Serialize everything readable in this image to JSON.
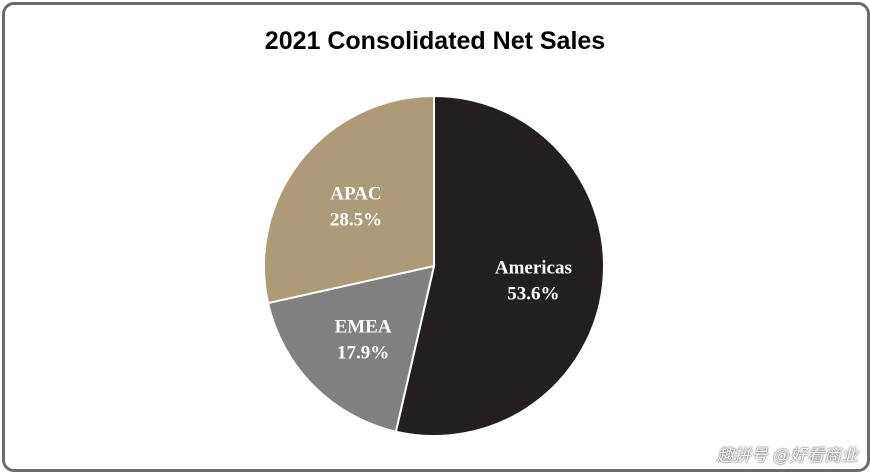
{
  "chart_data": {
    "type": "pie",
    "title": "2021 Consolidated Net Sales",
    "slices": [
      {
        "label": "Americas",
        "value": 53.6,
        "value_label": "53.6%",
        "color": "#231f20"
      },
      {
        "label": "EMEA",
        "value": 17.9,
        "value_label": "17.9%",
        "color": "#808080"
      },
      {
        "label": "APAC",
        "value": 28.5,
        "value_label": "28.5%",
        "color": "#ac9a78"
      }
    ],
    "start_angle": "12 o'clock",
    "direction": "clockwise",
    "legend": "none",
    "border_color": "#6b6b6b"
  },
  "watermark": {
    "text": "趣拼号 @好看商业"
  }
}
